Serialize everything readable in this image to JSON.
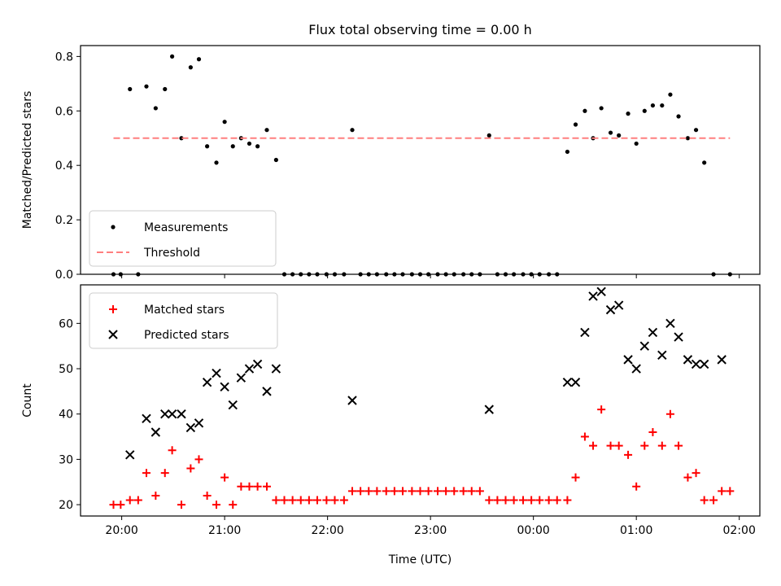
{
  "chart_data": {
    "type": "scatter",
    "title": "Flux total observing time = 0.00 h",
    "xlabel": "Time (UTC)",
    "x_ticks": [
      "20:00",
      "21:00",
      "22:00",
      "23:00",
      "00:00",
      "01:00",
      "02:00"
    ],
    "panels": [
      {
        "ylabel": "Matched/Predicted stars",
        "ylim": [
          0,
          0.84
        ],
        "y_ticks": [
          "0.0",
          "0.2",
          "0.4",
          "0.6",
          "0.8"
        ],
        "legend": {
          "placement": "lower-left",
          "entries": [
            "Measurements",
            "Threshold"
          ]
        },
        "series": [
          {
            "name": "Measurements",
            "marker": "dot",
            "color": "#000000",
            "x": [
              -0.08,
              -0.01,
              0.08,
              0.16,
              0.24,
              0.33,
              0.42,
              0.49,
              0.58,
              0.67,
              0.75,
              0.83,
              0.92,
              1.0,
              1.08,
              1.16,
              1.24,
              1.32,
              1.41,
              1.5,
              1.58,
              1.66,
              1.74,
              1.82,
              1.9,
              1.99,
              2.07,
              2.16,
              2.24,
              2.32,
              2.4,
              2.48,
              2.57,
              2.65,
              2.73,
              2.82,
              2.9,
              2.98,
              3.07,
              3.15,
              3.23,
              3.32,
              3.4,
              3.48,
              3.57,
              3.65,
              3.73,
              3.81,
              3.9,
              3.98,
              4.06,
              4.15,
              4.23,
              4.33,
              4.41,
              4.5,
              4.58,
              4.66,
              4.75,
              4.83,
              4.92,
              5.0,
              5.08,
              5.16,
              5.25,
              5.33,
              5.41,
              5.5,
              5.58,
              5.66,
              5.75,
              5.91
            ],
            "y": [
              0.0,
              0.0,
              0.68,
              0.0,
              0.69,
              0.61,
              0.68,
              0.8,
              0.5,
              0.76,
              0.79,
              0.47,
              0.41,
              0.56,
              0.47,
              0.5,
              0.48,
              0.47,
              0.53,
              0.42,
              0.0,
              0.0,
              0.0,
              0.0,
              0.0,
              0.0,
              0.0,
              0.0,
              0.53,
              0.0,
              0.0,
              0.0,
              0.0,
              0.0,
              0.0,
              0.0,
              0.0,
              0.0,
              0.0,
              0.0,
              0.0,
              0.0,
              0.0,
              0.0,
              0.51,
              0.0,
              0.0,
              0.0,
              0.0,
              0.0,
              0.0,
              0.0,
              0.0,
              0.45,
              0.55,
              0.6,
              0.5,
              0.61,
              0.52,
              0.51,
              0.59,
              0.48,
              0.6,
              0.62,
              0.62,
              0.66,
              0.58,
              0.5,
              0.53,
              0.41,
              0.0,
              0.0
            ]
          },
          {
            "name": "Threshold",
            "marker": "dashed-line",
            "color": "#ff7f7f",
            "x": [
              -0.08,
              5.91
            ],
            "y": [
              0.5,
              0.5
            ]
          }
        ]
      },
      {
        "ylabel": "Count",
        "ylim": [
          17.5,
          68.5
        ],
        "y_ticks": [
          "20",
          "30",
          "40",
          "50",
          "60"
        ],
        "legend": {
          "placement": "top-left",
          "entries": [
            "Matched stars",
            "Predicted stars"
          ]
        },
        "series": [
          {
            "name": "Matched stars",
            "marker": "plus",
            "color": "#ff0000",
            "x": [
              -0.08,
              -0.01,
              0.08,
              0.16,
              0.24,
              0.33,
              0.42,
              0.49,
              0.58,
              0.67,
              0.75,
              0.83,
              0.92,
              1.0,
              1.08,
              1.16,
              1.24,
              1.32,
              1.41,
              1.5,
              1.58,
              1.66,
              1.74,
              1.82,
              1.9,
              1.99,
              2.07,
              2.16,
              2.24,
              2.32,
              2.4,
              2.48,
              2.57,
              2.65,
              2.73,
              2.82,
              2.9,
              2.98,
              3.07,
              3.15,
              3.23,
              3.32,
              3.4,
              3.48,
              3.57,
              3.65,
              3.73,
              3.81,
              3.9,
              3.98,
              4.06,
              4.15,
              4.23,
              4.33,
              4.41,
              4.5,
              4.58,
              4.66,
              4.75,
              4.83,
              4.92,
              5.0,
              5.08,
              5.16,
              5.25,
              5.33,
              5.41,
              5.5,
              5.58,
              5.66,
              5.75,
              5.83,
              5.91
            ],
            "y": [
              20,
              20,
              21,
              21,
              27,
              22,
              27,
              32,
              20,
              28,
              30,
              22,
              20,
              26,
              20,
              24,
              24,
              24,
              24,
              21,
              21,
              21,
              21,
              21,
              21,
              21,
              21,
              21,
              23,
              23,
              23,
              23,
              23,
              23,
              23,
              23,
              23,
              23,
              23,
              23,
              23,
              23,
              23,
              23,
              21,
              21,
              21,
              21,
              21,
              21,
              21,
              21,
              21,
              21,
              26,
              35,
              33,
              41,
              33,
              33,
              31,
              24,
              33,
              36,
              33,
              40,
              33,
              26,
              27,
              21,
              21,
              23,
              23
            ]
          },
          {
            "name": "Predicted stars",
            "marker": "x",
            "color": "#000000",
            "x": [
              0.08,
              0.24,
              0.33,
              0.42,
              0.49,
              0.58,
              0.67,
              0.75,
              0.83,
              0.92,
              1.0,
              1.08,
              1.16,
              1.24,
              1.32,
              1.41,
              1.5,
              2.24,
              3.57,
              4.33,
              4.41,
              4.5,
              4.58,
              4.66,
              4.75,
              4.83,
              4.92,
              5.0,
              5.08,
              5.16,
              5.25,
              5.33,
              5.41,
              5.5,
              5.58,
              5.66,
              5.83
            ],
            "y": [
              31,
              39,
              36,
              40,
              40,
              40,
              37,
              38,
              47,
              49,
              46,
              42,
              48,
              50,
              51,
              45,
              50,
              43,
              41,
              47,
              47,
              58,
              66,
              67,
              63,
              64,
              52,
              50,
              55,
              58,
              53,
              60,
              57,
              52,
              51,
              51,
              52
            ]
          }
        ]
      }
    ]
  }
}
